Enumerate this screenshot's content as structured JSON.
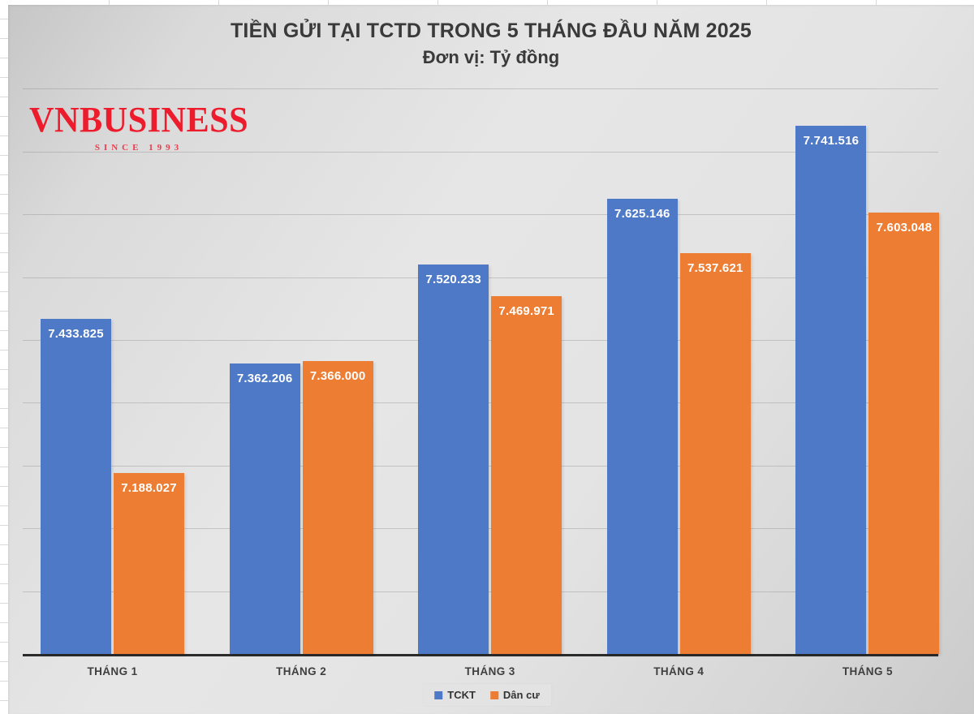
{
  "header": {
    "title": "TIỀN GỬI TẠI TCTD TRONG 5 THÁNG ĐẦU NĂM 2025",
    "subtitle": "Đơn vị: Tỷ đồng"
  },
  "logo": {
    "wordmark": "VNBUSINESS",
    "tagline": "SINCE 1993",
    "color": "#ed1c2d",
    "tagline_color": "#ef3a4a"
  },
  "chart_data": {
    "type": "bar",
    "title": "TIỀN GỬI TẠI TCTD TRONG 5 THÁNG ĐẦU NĂM 2025",
    "subtitle": "Đơn vị: Tỷ đồng",
    "unit": "Tỷ đồng",
    "categories": [
      "THÁNG 1",
      "THÁNG 2",
      "THÁNG 3",
      "THÁNG 4",
      "THÁNG 5"
    ],
    "series": [
      {
        "name": "TCKT",
        "color": "#4e79c7",
        "values": [
          7433825,
          7362206,
          7520233,
          7625146,
          7741516
        ],
        "labels": [
          "7.433.825",
          "7.362.206",
          "7.520.233",
          "7.625.146",
          "7.741.516"
        ]
      },
      {
        "name": "Dân cư",
        "color": "#ec7d32",
        "values": [
          7188027,
          7366000,
          7469971,
          7537621,
          7603048
        ],
        "labels": [
          "7.188.027",
          "7.366.000",
          "7.469.971",
          "7.537.621",
          "7.603.048"
        ]
      }
    ],
    "ylim": [
      6900000,
      7800000
    ],
    "grid_interval": 100000,
    "grid": true,
    "y_axis_labels_visible": false,
    "legend_position": "bottom",
    "value_labels_position": "inside-end"
  }
}
